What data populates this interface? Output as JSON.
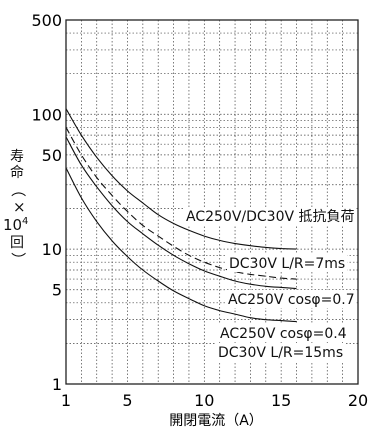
{
  "chart_data": {
    "type": "line",
    "xlabel": "開閉電流（A）",
    "ylabel": "寿命（×10⁴回）",
    "ylabel_parts": {
      "line1": "寿",
      "line2": "命",
      "open_paren": "（",
      "times": "×",
      "ten": "10",
      "exp": "4",
      "kai": "回",
      "close_paren": "）"
    },
    "xlim": [
      1,
      20
    ],
    "ylim": [
      1,
      500
    ],
    "yscale": "log",
    "grid": true,
    "x_ticks": [
      "1",
      "5",
      "10",
      "15",
      "20"
    ],
    "y_ticks": [
      "1",
      "5",
      "10",
      "50",
      "100",
      "500"
    ],
    "series": [
      {
        "label_lines": [
          "AC250V/DC30V 抵抗負荷"
        ],
        "style": "solid",
        "x": [
          1,
          2,
          3,
          4,
          5,
          6,
          7,
          8,
          9,
          10,
          11,
          12,
          13,
          14,
          15,
          16
        ],
        "y": [
          110,
          70,
          48,
          35,
          27,
          22,
          18,
          15.5,
          13.8,
          12.5,
          11.6,
          11,
          10.6,
          10.3,
          10.1,
          10
        ]
      },
      {
        "label_lines": [
          "DC30V L/R=7ms"
        ],
        "style": "dashed",
        "x": [
          1,
          2,
          3,
          4,
          5,
          6,
          7,
          8,
          9,
          10,
          11,
          12,
          13,
          14,
          15,
          16
        ],
        "y": [
          80,
          50,
          34,
          25,
          19,
          15,
          12.5,
          10.5,
          9,
          8,
          7.3,
          6.8,
          6.5,
          6.3,
          6.1,
          6
        ]
      },
      {
        "label_lines": [
          "AC250V cosφ=0.7"
        ],
        "style": "solid",
        "x": [
          1,
          2,
          3,
          4,
          5,
          6,
          7,
          8,
          9,
          10,
          11,
          12,
          13,
          14,
          15,
          16
        ],
        "y": [
          68,
          42,
          29,
          21,
          16,
          13,
          10.7,
          9,
          7.8,
          6.9,
          6.3,
          5.8,
          5.5,
          5.3,
          5.2,
          5.1
        ]
      },
      {
        "label_lines": [
          "AC250V cosφ=0.4",
          "DC30V L/R=15ms"
        ],
        "style": "solid",
        "x": [
          1,
          2,
          3,
          4,
          5,
          6,
          7,
          8,
          9,
          10,
          11,
          12,
          13,
          14,
          15,
          16
        ],
        "y": [
          40,
          24,
          16,
          11.5,
          8.8,
          7,
          5.8,
          4.9,
          4.3,
          3.8,
          3.5,
          3.3,
          3.1,
          3,
          2.95,
          2.9
        ]
      }
    ]
  }
}
